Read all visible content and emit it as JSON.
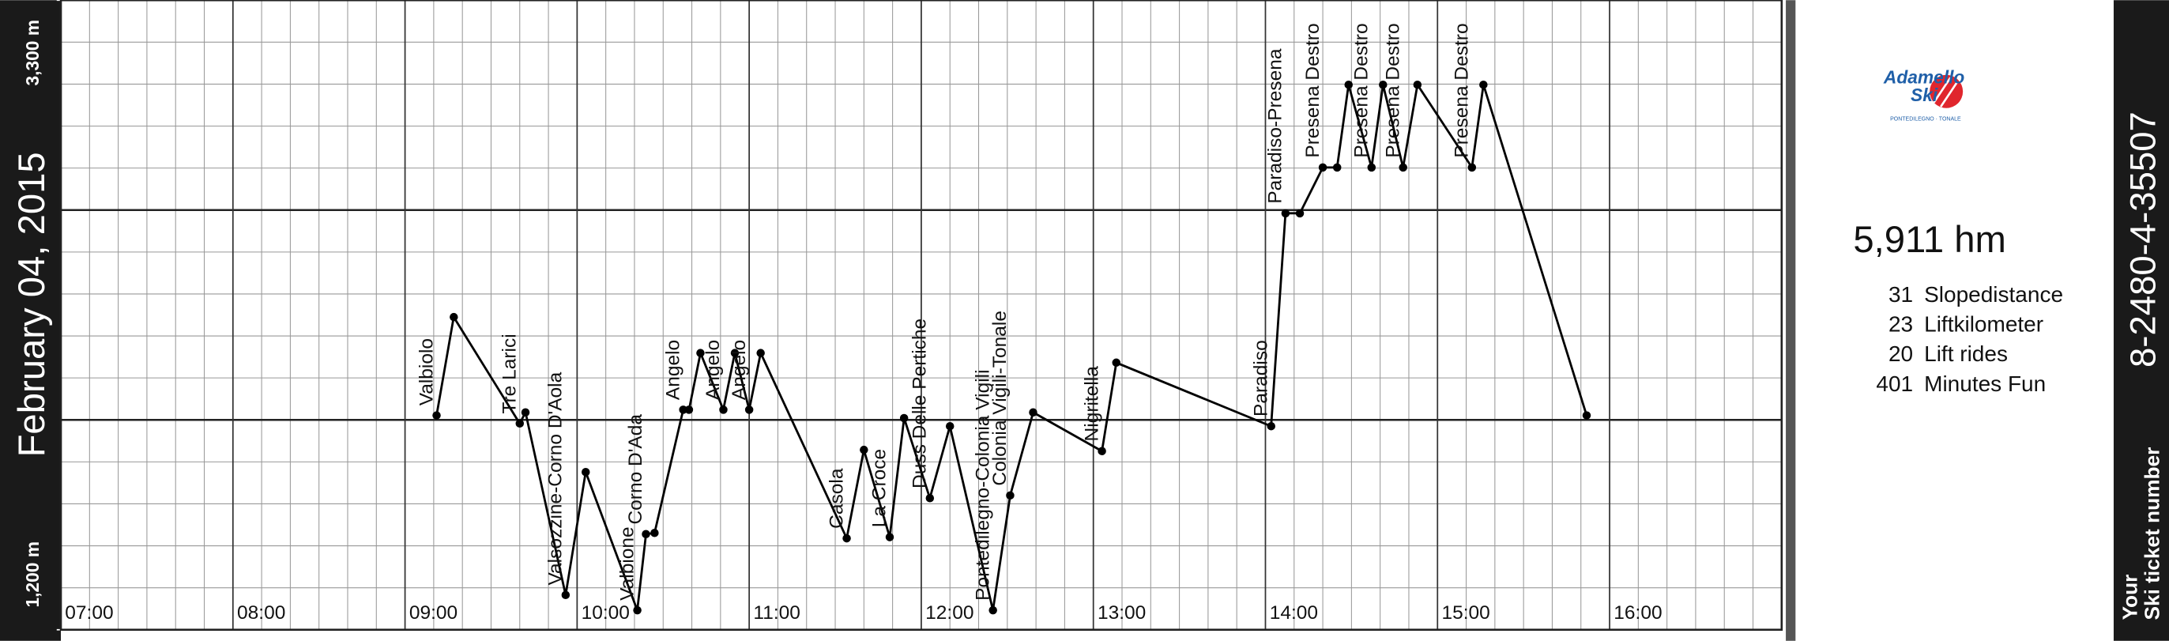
{
  "chart_data": {
    "type": "line",
    "date": "February 04, 2015",
    "x": [
      "09:11",
      "09:17",
      "09:40",
      "09:42",
      "09:56",
      "10:03",
      "10:21",
      "10:24",
      "10:27",
      "10:37",
      "10:39",
      "10:43",
      "10:51",
      "10:55",
      "11:00",
      "11:04",
      "11:34",
      "11:40",
      "11:49",
      "11:54",
      "12:03",
      "12:10",
      "12:25",
      "12:31",
      "12:39",
      "13:03",
      "13:08",
      "14:02",
      "14:07",
      "14:12",
      "14:20",
      "14:25",
      "14:29",
      "14:37",
      "14:41",
      "14:48",
      "14:53",
      "15:12",
      "15:16",
      "15:52"
    ],
    "values": [
      1915,
      2243,
      1888,
      1925,
      1316,
      1726,
      1265,
      1519,
      1523,
      1934,
      1934,
      2123,
      1934,
      2123,
      1934,
      2123,
      1505,
      1800,
      1509,
      1906,
      1639,
      1879,
      1265,
      1648,
      1925,
      1796,
      2091,
      1879,
      2589,
      2589,
      2742,
      2742,
      3018,
      2742,
      3018,
      2742,
      3018,
      2742,
      3018,
      1915
    ],
    "labels": [
      "Valbiolo",
      null,
      "Tre Larici",
      null,
      "Valsozzine-Corno D'Aola",
      null,
      "Valbione",
      "Corno D'Ada",
      null,
      "Angelo",
      null,
      null,
      "Angelo",
      null,
      "Angelo",
      null,
      "Casola",
      null,
      "La Croce",
      null,
      "Duss Delle Pertiche",
      null,
      "Pontedilegno-Colonia Vigili",
      "Colonia Vigili-Tonale",
      null,
      "Nigritella",
      null,
      "Paradiso",
      "Paradiso-Presena",
      null,
      "Presena Destro",
      null,
      null,
      "Presena Destro",
      null,
      "Presena Destro",
      null,
      "Presena Destro",
      null,
      null
    ],
    "color": "#000000",
    "xlim": [
      "07:00",
      "17:00"
    ],
    "xticks": [
      "07:00",
      "08:00",
      "09:00",
      "10:00",
      "11:00",
      "12:00",
      "13:00",
      "14:00",
      "15:00",
      "16:00"
    ],
    "ylim": [
      1200,
      3300
    ],
    "yticks": [
      {
        "value": 1200,
        "label": "1,200 m"
      },
      {
        "value": 3300,
        "label": "3,300 m"
      }
    ]
  },
  "summary": {
    "total": "5,911 hm",
    "stats": [
      {
        "value": 31,
        "label": "Slopedistance"
      },
      {
        "value": 23,
        "label": "Liftkilometer"
      },
      {
        "value": 20,
        "label": "Lift rides"
      },
      {
        "value": 401,
        "label": "Minutes Fun"
      }
    ]
  },
  "logo": {
    "line1": "Adamello",
    "line2": "Ski",
    "tagline": "PONTEDILEGNO · TONALE"
  },
  "ticket": {
    "number": "8-2480-4-35507",
    "caption1": "Your",
    "caption2": "Ski ticket number"
  }
}
